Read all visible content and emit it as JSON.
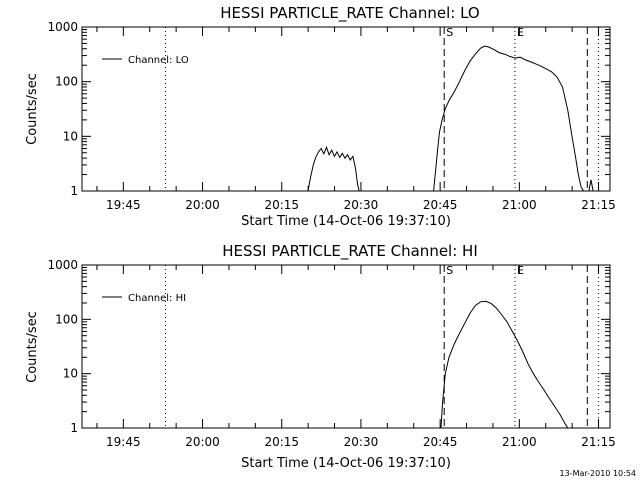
{
  "chart_data": [
    {
      "type": "line",
      "title": "HESSI PARTICLE_RATE Channel: LO",
      "xlabel": "Start Time (14-Oct-06 19:37:10)",
      "ylabel": "Counts/sec",
      "yscale": "log",
      "ylim": [
        1,
        1000
      ],
      "xlim_min": [
        0,
        100
      ],
      "xtick_values": [
        7.83,
        22.83,
        37.83,
        52.83,
        67.83,
        82.83,
        97.83
      ],
      "xtick_labels": [
        "19:45",
        "20:00",
        "20:15",
        "20:30",
        "20:45",
        "21:00",
        "21:15"
      ],
      "ytick_values": [
        1,
        10,
        100,
        1000
      ],
      "ytick_labels": [
        "1",
        "10",
        "100",
        "1000"
      ],
      "legend": {
        "position": "top-left",
        "entries": [
          "Channel: LO"
        ]
      },
      "vlines": [
        {
          "x": 15.8,
          "style": "dotted",
          "label": ""
        },
        {
          "x": 68.6,
          "style": "dashed",
          "label": "S"
        },
        {
          "x": 82.0,
          "style": "dotted",
          "label": "E"
        },
        {
          "x": 95.7,
          "style": "dashed",
          "label": ""
        },
        {
          "x": 97.8,
          "style": "dotted",
          "label": ""
        }
      ],
      "series": [
        {
          "segments": [
            [
              [
                42.8,
                1.0
              ],
              [
                43.3,
                1.8
              ],
              [
                43.8,
                3.0
              ],
              [
                44.3,
                4.2
              ],
              [
                44.8,
                5.2
              ],
              [
                45.3,
                6.0
              ],
              [
                45.8,
                4.8
              ],
              [
                46.3,
                6.3
              ],
              [
                46.8,
                4.6
              ],
              [
                47.3,
                5.6
              ],
              [
                47.8,
                4.3
              ],
              [
                48.3,
                5.2
              ],
              [
                48.8,
                4.1
              ],
              [
                49.3,
                4.9
              ],
              [
                49.8,
                4.0
              ],
              [
                50.3,
                4.6
              ],
              [
                50.8,
                3.7
              ],
              [
                51.3,
                4.3
              ],
              [
                51.8,
                2.6
              ],
              [
                52.2,
                1.3
              ],
              [
                52.5,
                1.0
              ]
            ],
            [
              [
                66.6,
                1.0
              ],
              [
                66.9,
                2.0
              ],
              [
                67.3,
                5.0
              ],
              [
                67.7,
                12
              ],
              [
                68.2,
                20
              ],
              [
                68.8,
                32
              ],
              [
                69.5,
                45
              ],
              [
                70.5,
                65
              ],
              [
                71.5,
                100
              ],
              [
                72.5,
                160
              ],
              [
                73.5,
                240
              ],
              [
                74.5,
                320
              ],
              [
                75.5,
                410
              ],
              [
                76.3,
                450
              ],
              [
                77.0,
                430
              ],
              [
                78.0,
                390
              ],
              [
                79.0,
                340
              ],
              [
                80.0,
                320
              ],
              [
                81.0,
                290
              ],
              [
                82.0,
                270
              ],
              [
                83.0,
                280
              ],
              [
                84.0,
                250
              ],
              [
                85.0,
                230
              ],
              [
                86.0,
                210
              ],
              [
                87.0,
                190
              ],
              [
                88.0,
                170
              ],
              [
                89.0,
                150
              ],
              [
                90.0,
                120
              ],
              [
                91.0,
                80
              ],
              [
                92.0,
                30
              ],
              [
                92.8,
                10
              ],
              [
                93.5,
                4
              ],
              [
                94.0,
                2
              ],
              [
                94.5,
                1.2
              ],
              [
                95.0,
                1.0
              ]
            ],
            [
              [
                96.0,
                1.0
              ],
              [
                96.4,
                1.6
              ],
              [
                96.8,
                1.0
              ]
            ]
          ]
        }
      ]
    },
    {
      "type": "line",
      "title": "HESSI PARTICLE_RATE Channel: HI",
      "xlabel": "Start Time (14-Oct-06 19:37:10)",
      "ylabel": "Counts/sec",
      "yscale": "log",
      "ylim": [
        1,
        1000
      ],
      "xlim_min": [
        0,
        100
      ],
      "xtick_values": [
        7.83,
        22.83,
        37.83,
        52.83,
        67.83,
        82.83,
        97.83
      ],
      "xtick_labels": [
        "19:45",
        "20:00",
        "20:15",
        "20:30",
        "20:45",
        "21:00",
        "21:15"
      ],
      "ytick_values": [
        1,
        10,
        100,
        1000
      ],
      "ytick_labels": [
        "1",
        "10",
        "100",
        "1000"
      ],
      "legend": {
        "position": "top-left",
        "entries": [
          "Channel: HI"
        ]
      },
      "vlines": [
        {
          "x": 15.8,
          "style": "dotted",
          "label": ""
        },
        {
          "x": 68.6,
          "style": "dashed",
          "label": "S"
        },
        {
          "x": 82.0,
          "style": "dotted",
          "label": "E"
        },
        {
          "x": 95.7,
          "style": "dashed",
          "label": ""
        },
        {
          "x": 97.8,
          "style": "dotted",
          "label": ""
        }
      ],
      "series": [
        {
          "segments": [
            [
              [
                68.0,
                1.0
              ],
              [
                68.3,
                3.0
              ],
              [
                68.8,
                10
              ],
              [
                69.5,
                20
              ],
              [
                70.5,
                35
              ],
              [
                71.5,
                55
              ],
              [
                72.5,
                85
              ],
              [
                73.5,
                130
              ],
              [
                74.5,
                180
              ],
              [
                75.5,
                210
              ],
              [
                76.5,
                215
              ],
              [
                77.5,
                195
              ],
              [
                78.5,
                160
              ],
              [
                79.5,
                120
              ],
              [
                80.5,
                90
              ],
              [
                81.5,
                60
              ],
              [
                82.5,
                40
              ],
              [
                83.5,
                25
              ],
              [
                84.5,
                15
              ],
              [
                85.5,
                10
              ],
              [
                86.5,
                7
              ],
              [
                87.5,
                5
              ],
              [
                88.5,
                3.5
              ],
              [
                89.5,
                2.5
              ],
              [
                90.5,
                1.8
              ],
              [
                91.5,
                1.2
              ],
              [
                92.0,
                1.0
              ]
            ]
          ]
        }
      ]
    }
  ],
  "footer": {
    "timestamp": "13-Mar-2010 10:54"
  }
}
